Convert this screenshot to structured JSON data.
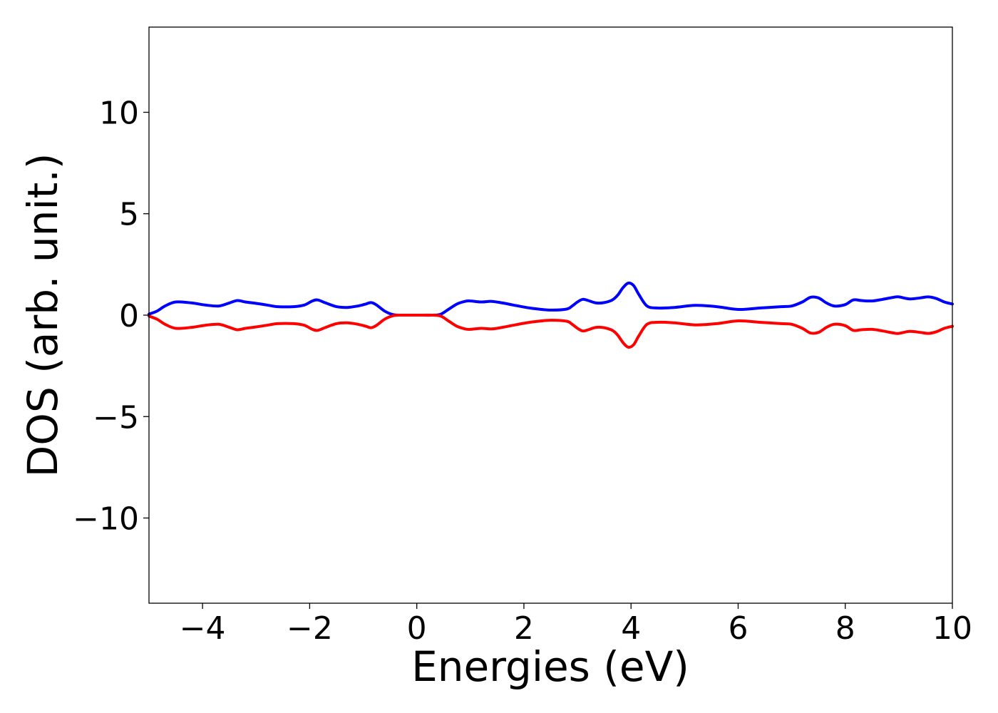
{
  "chart_data": {
    "type": "line",
    "title": "",
    "xlabel": "Energies (eV)",
    "ylabel": "DOS (arb. unit.)",
    "xlim": [
      -5,
      10
    ],
    "ylim": [
      -14.2,
      14.2
    ],
    "xticks": [
      -4,
      -2,
      0,
      2,
      4,
      6,
      8,
      10
    ],
    "yticks": [
      -10,
      -5,
      0,
      5,
      10
    ],
    "xtick_labels": [
      "−4",
      "−2",
      "0",
      "2",
      "4",
      "6",
      "8",
      "10"
    ],
    "ytick_labels": [
      "−10",
      "−5",
      "0",
      "5",
      "10"
    ],
    "grid": false,
    "legend": "none",
    "series": [
      {
        "color": "#0000ff",
        "x": [
          -5.0,
          -4.85,
          -4.7,
          -4.5,
          -4.2,
          -3.95,
          -3.7,
          -3.5,
          -3.35,
          -3.2,
          -3.0,
          -2.8,
          -2.6,
          -2.3,
          -2.1,
          -1.95,
          -1.85,
          -1.7,
          -1.5,
          -1.3,
          -1.1,
          -0.95,
          -0.85,
          -0.75,
          -0.6,
          -0.45,
          -0.3,
          0.0,
          0.3,
          0.45,
          0.6,
          0.75,
          0.9,
          1.0,
          1.2,
          1.4,
          1.6,
          1.8,
          2.0,
          2.2,
          2.5,
          2.8,
          2.9,
          3.0,
          3.1,
          3.2,
          3.35,
          3.5,
          3.65,
          3.75,
          3.85,
          3.95,
          4.05,
          4.15,
          4.3,
          4.5,
          4.8,
          5.2,
          5.6,
          6.0,
          6.4,
          6.8,
          7.0,
          7.2,
          7.35,
          7.5,
          7.65,
          7.8,
          8.0,
          8.15,
          8.3,
          8.5,
          8.7,
          8.9,
          9.0,
          9.2,
          9.4,
          9.55,
          9.7,
          9.85,
          10.0
        ],
        "y": [
          0.05,
          0.2,
          0.45,
          0.65,
          0.6,
          0.5,
          0.45,
          0.6,
          0.72,
          0.65,
          0.58,
          0.5,
          0.42,
          0.42,
          0.5,
          0.7,
          0.75,
          0.6,
          0.42,
          0.38,
          0.45,
          0.55,
          0.62,
          0.5,
          0.2,
          0.03,
          0.0,
          0.0,
          0.0,
          0.05,
          0.3,
          0.55,
          0.68,
          0.7,
          0.65,
          0.68,
          0.6,
          0.5,
          0.4,
          0.32,
          0.25,
          0.3,
          0.45,
          0.65,
          0.78,
          0.72,
          0.6,
          0.62,
          0.75,
          0.98,
          1.35,
          1.58,
          1.45,
          1.0,
          0.45,
          0.35,
          0.38,
          0.48,
          0.42,
          0.28,
          0.35,
          0.42,
          0.45,
          0.65,
          0.88,
          0.85,
          0.6,
          0.45,
          0.52,
          0.75,
          0.72,
          0.7,
          0.78,
          0.88,
          0.9,
          0.8,
          0.85,
          0.9,
          0.82,
          0.65,
          0.55
        ]
      },
      {
        "color": "#ff0000",
        "x": [
          -5.0,
          -4.85,
          -4.7,
          -4.5,
          -4.2,
          -3.95,
          -3.7,
          -3.5,
          -3.35,
          -3.2,
          -3.0,
          -2.8,
          -2.6,
          -2.3,
          -2.1,
          -1.95,
          -1.85,
          -1.7,
          -1.5,
          -1.3,
          -1.1,
          -0.95,
          -0.85,
          -0.75,
          -0.6,
          -0.45,
          -0.3,
          0.0,
          0.3,
          0.45,
          0.6,
          0.75,
          0.9,
          1.0,
          1.2,
          1.4,
          1.6,
          1.8,
          2.0,
          2.2,
          2.5,
          2.8,
          2.9,
          3.0,
          3.1,
          3.2,
          3.35,
          3.5,
          3.65,
          3.75,
          3.85,
          3.95,
          4.05,
          4.15,
          4.3,
          4.5,
          4.8,
          5.2,
          5.6,
          6.0,
          6.4,
          6.8,
          7.0,
          7.2,
          7.35,
          7.5,
          7.65,
          7.8,
          8.0,
          8.15,
          8.3,
          8.5,
          8.7,
          8.9,
          9.0,
          9.2,
          9.4,
          9.55,
          9.7,
          9.85,
          10.0
        ],
        "y": [
          -0.05,
          -0.2,
          -0.45,
          -0.65,
          -0.6,
          -0.5,
          -0.45,
          -0.6,
          -0.72,
          -0.65,
          -0.58,
          -0.5,
          -0.42,
          -0.42,
          -0.5,
          -0.7,
          -0.75,
          -0.6,
          -0.42,
          -0.38,
          -0.45,
          -0.55,
          -0.62,
          -0.5,
          -0.2,
          -0.03,
          0.0,
          0.0,
          0.0,
          -0.05,
          -0.3,
          -0.55,
          -0.68,
          -0.7,
          -0.65,
          -0.68,
          -0.6,
          -0.5,
          -0.4,
          -0.32,
          -0.25,
          -0.3,
          -0.45,
          -0.65,
          -0.78,
          -0.72,
          -0.6,
          -0.62,
          -0.75,
          -0.98,
          -1.35,
          -1.58,
          -1.45,
          -1.0,
          -0.45,
          -0.35,
          -0.38,
          -0.48,
          -0.42,
          -0.28,
          -0.35,
          -0.42,
          -0.45,
          -0.65,
          -0.88,
          -0.85,
          -0.6,
          -0.45,
          -0.52,
          -0.75,
          -0.72,
          -0.7,
          -0.78,
          -0.88,
          -0.9,
          -0.8,
          -0.85,
          -0.9,
          -0.82,
          -0.65,
          -0.55
        ]
      }
    ]
  }
}
